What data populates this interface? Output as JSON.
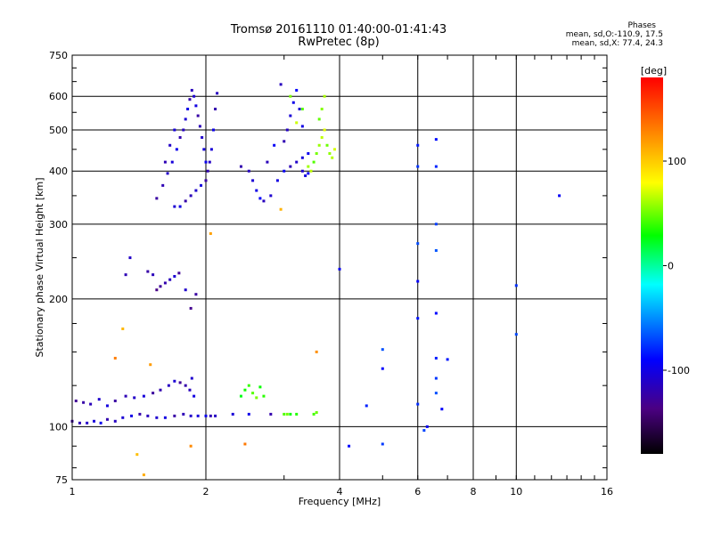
{
  "header": {
    "title_line1": "Tromsø 20161110 01:40:00-01:41:43",
    "title_line2": "RwPretec (8p)",
    "stats_heading": "Phases",
    "stats_o": "mean, sd,O:-110.9, 17.5",
    "stats_x": "mean, sd,X:  77.4, 24.3"
  },
  "chart_data": {
    "type": "scatter",
    "xlabel": "Frequency [MHz]",
    "ylabel": "Stationary phase Virtual Height [km]",
    "xscale": "log",
    "yscale": "log",
    "xlim": [
      1,
      16
    ],
    "ylim": [
      75,
      750
    ],
    "xticks": [
      1,
      2,
      4,
      6,
      8,
      10,
      16
    ],
    "xtick_labels": [
      "1",
      "2",
      "4",
      "6",
      "8",
      "10",
      "16"
    ],
    "yticks": [
      75,
      100,
      200,
      300,
      400,
      500,
      600,
      750
    ],
    "ytick_labels": [
      "75",
      "100",
      "200",
      "300",
      "400",
      "500",
      "600",
      "750"
    ],
    "grid": true,
    "colorbar": {
      "label": "[deg]",
      "range": [
        -180,
        180
      ],
      "ticks": [
        100,
        0,
        -100
      ],
      "tick_labels": [
        "100",
        "0",
        "-100"
      ],
      "colormap": "rainbow (black-purple-blue-cyan-green-yellow-orange-red)"
    },
    "clusters": [
      {
        "name": "low-F-trace",
        "phase": -110,
        "points": [
          [
            1.0,
            103
          ],
          [
            1.04,
            102
          ],
          [
            1.08,
            102
          ],
          [
            1.12,
            103
          ],
          [
            1.16,
            102
          ],
          [
            1.2,
            104
          ],
          [
            1.25,
            103
          ],
          [
            1.3,
            105
          ],
          [
            1.36,
            106
          ],
          [
            1.42,
            107
          ],
          [
            1.48,
            106
          ],
          [
            1.55,
            105
          ],
          [
            1.62,
            105
          ],
          [
            1.7,
            106
          ],
          [
            1.78,
            107
          ],
          [
            1.85,
            106
          ],
          [
            1.92,
            106
          ],
          [
            2.0,
            106
          ],
          [
            2.05,
            106
          ],
          [
            2.1,
            106
          ],
          [
            2.3,
            107
          ],
          [
            2.5,
            107
          ],
          [
            2.8,
            107
          ]
        ]
      },
      {
        "name": "low-E-upper",
        "phase": -115,
        "points": [
          [
            1.02,
            115
          ],
          [
            1.06,
            114
          ],
          [
            1.1,
            113
          ],
          [
            1.15,
            116
          ],
          [
            1.2,
            112
          ],
          [
            1.25,
            115
          ],
          [
            1.32,
            118
          ],
          [
            1.38,
            117
          ],
          [
            1.45,
            118
          ],
          [
            1.52,
            120
          ],
          [
            1.58,
            122
          ],
          [
            1.65,
            125
          ],
          [
            1.7,
            128
          ],
          [
            1.75,
            127
          ],
          [
            1.8,
            125
          ],
          [
            1.84,
            122
          ],
          [
            1.86,
            130
          ],
          [
            1.88,
            118
          ]
        ]
      },
      {
        "name": "mid-cluster",
        "phase": -120,
        "points": [
          [
            1.55,
            210
          ],
          [
            1.58,
            214
          ],
          [
            1.62,
            218
          ],
          [
            1.66,
            222
          ],
          [
            1.7,
            226
          ],
          [
            1.74,
            230
          ],
          [
            1.48,
            232
          ],
          [
            1.52,
            228
          ],
          [
            1.8,
            210
          ],
          [
            1.85,
            190
          ],
          [
            1.9,
            205
          ],
          [
            1.32,
            228
          ],
          [
            1.35,
            250
          ]
        ]
      },
      {
        "name": "F-main",
        "phase": -110,
        "points": [
          [
            1.55,
            345
          ],
          [
            1.6,
            370
          ],
          [
            1.64,
            395
          ],
          [
            1.68,
            420
          ],
          [
            1.72,
            450
          ],
          [
            1.75,
            480
          ],
          [
            1.78,
            500
          ],
          [
            1.8,
            530
          ],
          [
            1.82,
            560
          ],
          [
            1.84,
            590
          ],
          [
            1.86,
            620
          ],
          [
            1.88,
            600
          ],
          [
            1.9,
            570
          ],
          [
            1.92,
            540
          ],
          [
            1.94,
            510
          ],
          [
            1.96,
            480
          ],
          [
            1.98,
            450
          ],
          [
            2.0,
            420
          ],
          [
            2.02,
            400
          ],
          [
            2.04,
            420
          ],
          [
            2.06,
            450
          ],
          [
            2.08,
            500
          ],
          [
            2.1,
            560
          ],
          [
            2.12,
            610
          ],
          [
            1.7,
            330
          ],
          [
            1.75,
            330
          ],
          [
            1.8,
            340
          ],
          [
            1.85,
            350
          ],
          [
            1.9,
            360
          ],
          [
            1.95,
            370
          ],
          [
            2.0,
            380
          ],
          [
            1.62,
            420
          ],
          [
            1.66,
            460
          ],
          [
            1.7,
            500
          ]
        ]
      },
      {
        "name": "F-upper",
        "phase": -105,
        "points": [
          [
            2.4,
            410
          ],
          [
            2.5,
            400
          ],
          [
            2.55,
            380
          ],
          [
            2.6,
            360
          ],
          [
            2.65,
            345
          ],
          [
            2.7,
            340
          ],
          [
            2.8,
            350
          ],
          [
            2.9,
            380
          ],
          [
            3.0,
            400
          ],
          [
            3.1,
            410
          ],
          [
            3.2,
            420
          ],
          [
            3.3,
            430
          ],
          [
            3.4,
            440
          ],
          [
            3.0,
            470
          ],
          [
            3.05,
            500
          ],
          [
            3.1,
            540
          ],
          [
            3.15,
            580
          ],
          [
            3.2,
            620
          ],
          [
            2.95,
            640
          ],
          [
            3.25,
            560
          ],
          [
            3.3,
            510
          ],
          [
            2.85,
            460
          ],
          [
            2.75,
            420
          ],
          [
            3.3,
            400
          ],
          [
            3.35,
            390
          ],
          [
            3.4,
            395
          ]
        ]
      },
      {
        "name": "F-green-yellow",
        "phase": 60,
        "points": [
          [
            3.5,
            420
          ],
          [
            3.55,
            440
          ],
          [
            3.6,
            460
          ],
          [
            3.65,
            480
          ],
          [
            3.7,
            500
          ],
          [
            3.75,
            460
          ],
          [
            3.8,
            440
          ],
          [
            3.85,
            430
          ],
          [
            3.9,
            450
          ],
          [
            3.6,
            530
          ],
          [
            3.65,
            560
          ],
          [
            3.7,
            600
          ],
          [
            3.2,
            520
          ],
          [
            3.3,
            560
          ],
          [
            3.1,
            600
          ],
          [
            3.4,
            410
          ],
          [
            3.45,
            400
          ]
        ]
      },
      {
        "name": "E-green",
        "phase": 40,
        "points": [
          [
            2.4,
            118
          ],
          [
            2.45,
            122
          ],
          [
            2.5,
            125
          ],
          [
            2.55,
            120
          ],
          [
            2.6,
            117
          ],
          [
            2.65,
            124
          ],
          [
            2.7,
            118
          ],
          [
            3.0,
            107
          ],
          [
            3.05,
            107
          ],
          [
            3.1,
            107
          ],
          [
            3.2,
            107
          ],
          [
            3.5,
            107
          ],
          [
            3.55,
            108
          ]
        ]
      },
      {
        "name": "scattered",
        "phase": -80,
        "points": [
          [
            4.0,
            235
          ],
          [
            4.2,
            90
          ],
          [
            4.6,
            112
          ],
          [
            5.0,
            91
          ],
          [
            5.0,
            152
          ],
          [
            5.0,
            137
          ],
          [
            6.0,
            460
          ],
          [
            6.0,
            410
          ],
          [
            6.0,
            270
          ],
          [
            6.0,
            220
          ],
          [
            6.0,
            180
          ],
          [
            6.0,
            113
          ],
          [
            6.2,
            98
          ],
          [
            6.3,
            100
          ],
          [
            6.6,
            475
          ],
          [
            6.6,
            410
          ],
          [
            6.6,
            300
          ],
          [
            6.6,
            260
          ],
          [
            6.6,
            185
          ],
          [
            6.6,
            145
          ],
          [
            6.6,
            130
          ],
          [
            6.6,
            120
          ],
          [
            6.8,
            110
          ],
          [
            7.0,
            144
          ],
          [
            10.0,
            215
          ],
          [
            10.0,
            165
          ],
          [
            12.5,
            350
          ]
        ]
      },
      {
        "name": "low-misc",
        "phase": 120,
        "points": [
          [
            1.4,
            86
          ],
          [
            1.45,
            77
          ],
          [
            1.5,
            140
          ],
          [
            1.85,
            90
          ],
          [
            2.45,
            91
          ],
          [
            2.95,
            325
          ],
          [
            2.05,
            285
          ],
          [
            3.55,
            150
          ],
          [
            1.25,
            145
          ],
          [
            1.3,
            170
          ]
        ]
      }
    ]
  },
  "colors": {
    "background": "#ffffff",
    "axes": "#000000"
  }
}
